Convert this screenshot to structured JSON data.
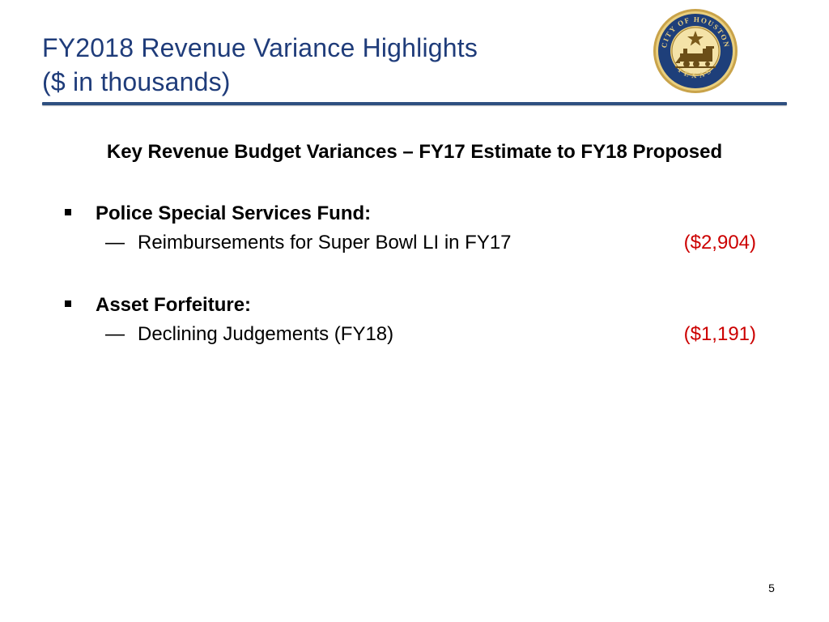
{
  "title": {
    "line1": "FY2018 Revenue Variance Highlights",
    "line2": "($ in thousands)"
  },
  "logo": {
    "name": "city-of-houston-seal-icon",
    "top_text": "CITY OF HOUSTON",
    "bottom_text": "TEXAS"
  },
  "subtitle": "Key Revenue Budget Variances – FY17 Estimate to FY18 Proposed",
  "sections": [
    {
      "heading": "Police Special Services Fund:",
      "items": [
        {
          "dash": "—",
          "label": "Reimbursements for Super Bowl LI in FY17",
          "value": "($2,904)"
        }
      ]
    },
    {
      "heading": "Asset Forfeiture:",
      "items": [
        {
          "dash": "—",
          "label": "Declining Judgements (FY18)",
          "value": "($1,191)"
        }
      ]
    }
  ],
  "colors": {
    "title": "#1f3c7a",
    "rule": "#2e4f80",
    "negative_value": "#cc0000"
  },
  "page_number": "5"
}
